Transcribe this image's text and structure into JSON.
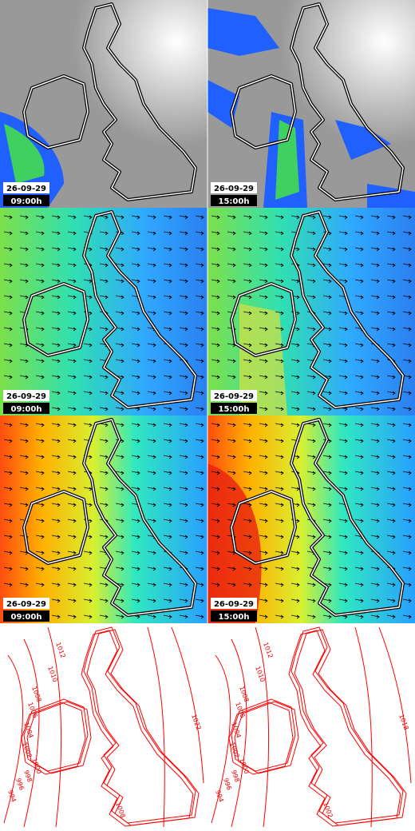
{
  "panels": [
    {
      "date": "26-09-29",
      "time": "09:00h"
    },
    {
      "date": "26-09-29",
      "time": "15:00h"
    },
    {
      "date": "26-09-29",
      "time": "09:00h"
    },
    {
      "date": "26-09-29",
      "time": "15:00h"
    },
    {
      "date": "26-09-29",
      "time": "09:00h"
    },
    {
      "date": "26-09-29",
      "time": "15:00h"
    }
  ],
  "isobar_labels": {
    "left": [
      "1012",
      "1010",
      "1008",
      "1006",
      "1004",
      "1002",
      "1000",
      "998",
      "996",
      "994",
      "1022",
      "1008"
    ],
    "right": [
      "1012",
      "1010",
      "1008",
      "1006",
      "1004",
      "1002",
      "1000",
      "998",
      "996",
      "994",
      "1018",
      "1002"
    ]
  }
}
